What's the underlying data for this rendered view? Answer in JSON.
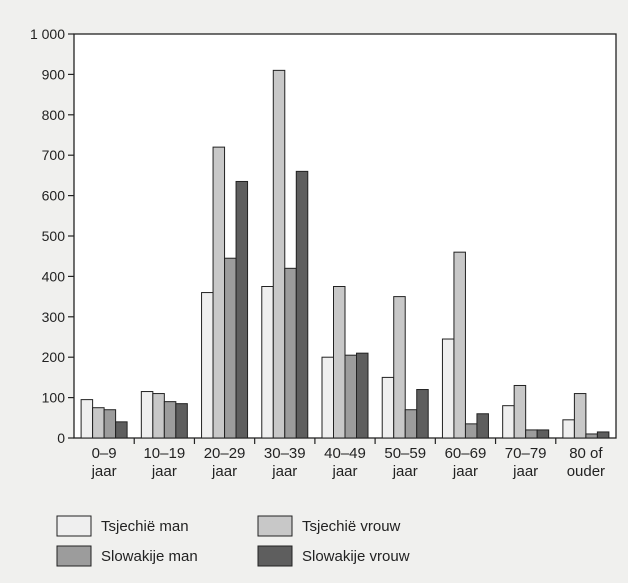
{
  "chart_data": {
    "type": "bar",
    "categories": [
      [
        "0–9",
        "jaar"
      ],
      [
        "10–19",
        "jaar"
      ],
      [
        "20–29",
        "jaar"
      ],
      [
        "30–39",
        "jaar"
      ],
      [
        "40–49",
        "jaar"
      ],
      [
        "50–59",
        "jaar"
      ],
      [
        "60–69",
        "jaar"
      ],
      [
        "70–79",
        "jaar"
      ],
      [
        "80 of",
        "ouder"
      ]
    ],
    "series": [
      {
        "name": "Tsjechië man",
        "color": "#efefef",
        "values": [
          95,
          115,
          360,
          375,
          200,
          150,
          245,
          80,
          45
        ]
      },
      {
        "name": "Tsjechië vrouw",
        "color": "#c8c8c8",
        "values": [
          75,
          110,
          720,
          910,
          375,
          350,
          460,
          130,
          110
        ]
      },
      {
        "name": "Slowakije man",
        "color": "#9c9c9c",
        "values": [
          70,
          90,
          445,
          420,
          205,
          70,
          35,
          20,
          10
        ]
      },
      {
        "name": "Slowakije vrouw",
        "color": "#5e5e5e",
        "values": [
          40,
          85,
          635,
          660,
          210,
          120,
          60,
          20,
          15
        ]
      }
    ],
    "yticks": [
      "0",
      "100",
      "200",
      "300",
      "400",
      "500",
      "600",
      "700",
      "800",
      "900",
      "1 000"
    ],
    "ylim": [
      0,
      1000
    ],
    "grid": false,
    "legend_position": "bottom"
  }
}
